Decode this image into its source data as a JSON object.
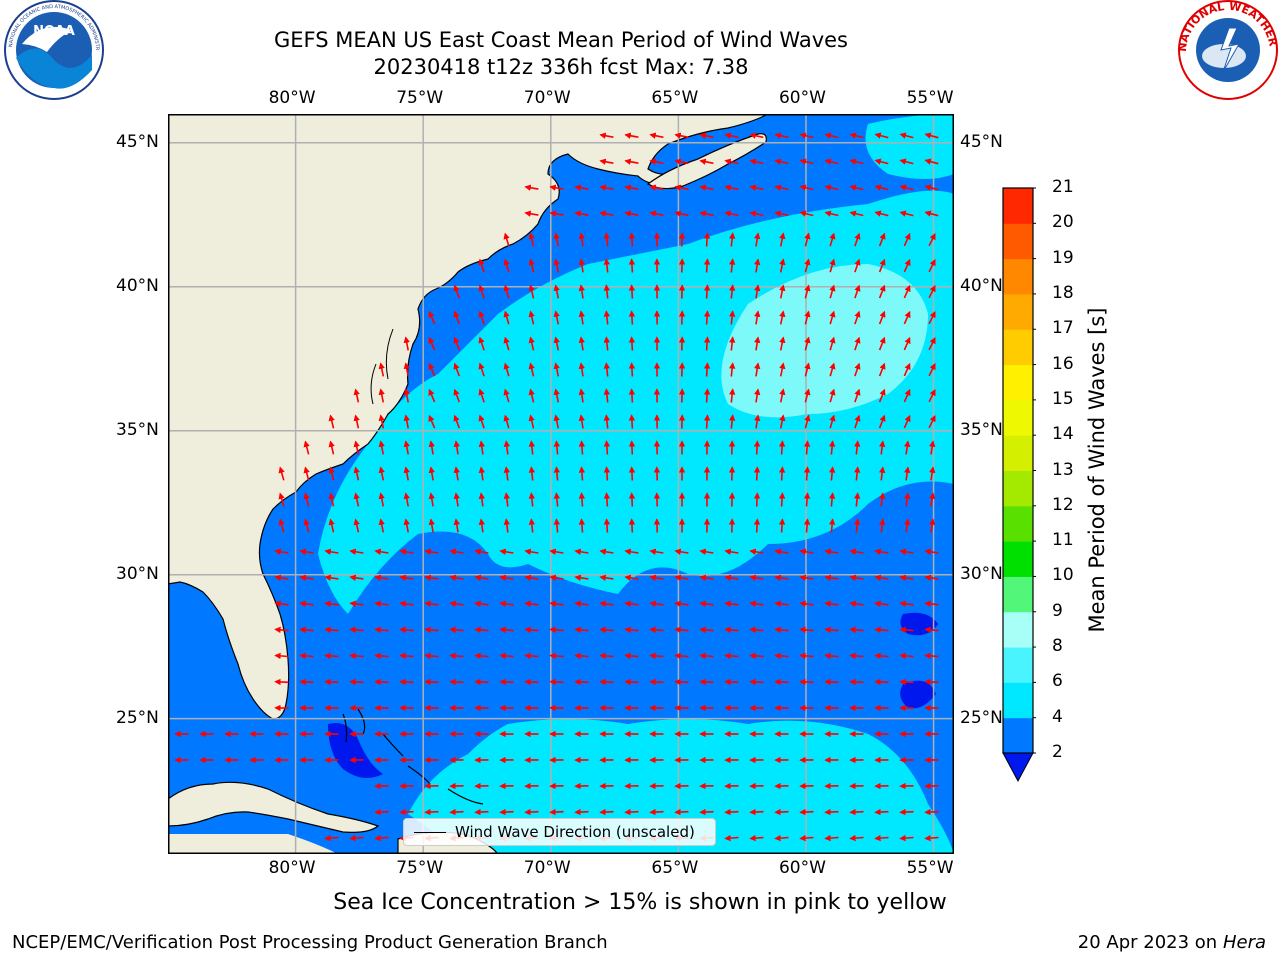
{
  "title": {
    "line1": "GEFS MEAN US East Coast Mean Period of Wind Waves",
    "line2": "20230418 t12z 336h fcst   Max: 7.38"
  },
  "map": {
    "lon_labels": [
      "80°W",
      "75°W",
      "70°W",
      "65°W",
      "60°W",
      "55°W"
    ],
    "lat_labels": [
      "45°N",
      "40°N",
      "35°N",
      "30°N",
      "25°N"
    ],
    "grid": true,
    "extent": {
      "lon": [
        -85,
        -54.2
      ],
      "lat": [
        20.3,
        46
      ]
    }
  },
  "colorbar": {
    "title": "Mean Period of Wind Waves [s]",
    "labels": [
      "2",
      "4",
      "6",
      "8",
      "9",
      "10",
      "11",
      "12",
      "13",
      "14",
      "15",
      "16",
      "17",
      "18",
      "19",
      "20",
      "21"
    ],
    "colors": [
      "#0078ff",
      "#00e8ff",
      "#4af4ff",
      "#a8fff8",
      "#52f77a",
      "#00e000",
      "#5ae000",
      "#a4ea00",
      "#d4f000",
      "#eef800",
      "#fff000",
      "#ffcc00",
      "#ffaa00",
      "#ff8800",
      "#ff5a00",
      "#ff2800"
    ],
    "extend_min_color": "#0018ee"
  },
  "legend": {
    "label": "Wind Wave Direction (unscaled)"
  },
  "note": "Sea Ice Concentration > 15% is shown in pink to yellow",
  "footer": {
    "left": "NCEP/EMC/Verification Post Processing Product Generation Branch",
    "right_date": "20 Apr 2023 on ",
    "right_host": "Hera"
  },
  "logos": {
    "left": "NOAA",
    "right": "NATIONAL WEATHER SERVICE"
  },
  "palette": {
    "land": "#efeddc",
    "deep_blue": "#0078ff",
    "cyan": "#00e8ff",
    "light_cyan": "#a8fff8",
    "arrow": "#ff0000",
    "grid": "#b0b0b0"
  }
}
